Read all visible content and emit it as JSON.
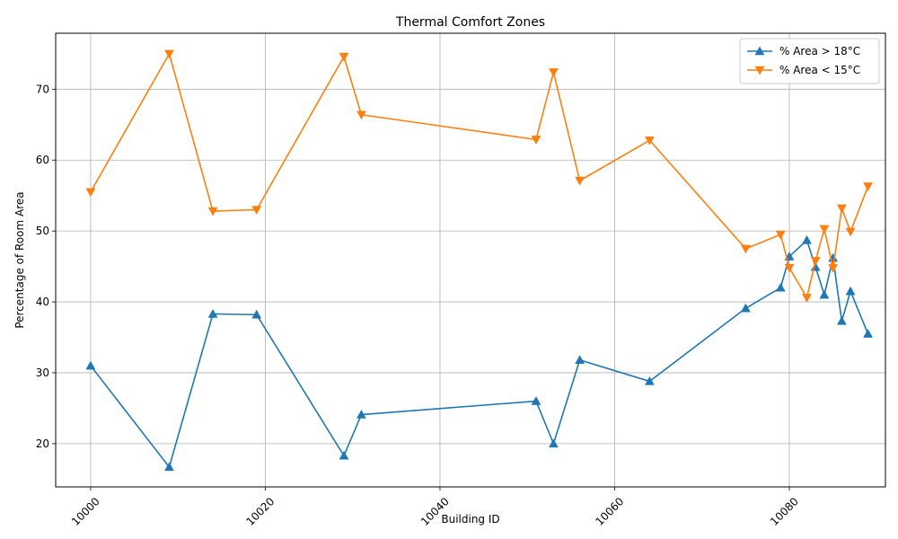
{
  "chart_data": {
    "type": "line",
    "title": "Thermal Comfort Zones",
    "xlabel": "Building ID",
    "ylabel": "Percentage of Room Area",
    "xlim": [
      9996,
      10091
    ],
    "ylim": [
      13.9,
      77.9
    ],
    "xticks": [
      10000,
      10020,
      10040,
      10060,
      10080
    ],
    "yticks": [
      20,
      30,
      40,
      50,
      60,
      70
    ],
    "grid": true,
    "legend_position": "top-right",
    "x": [
      10000,
      10009,
      10014,
      10019,
      10029,
      10031,
      10051,
      10053,
      10056,
      10064,
      10075,
      10079,
      10080,
      10082,
      10083,
      10084,
      10085,
      10086,
      10087,
      10089
    ],
    "series": [
      {
        "name": "% Area > 18°C",
        "color": "#1f77b4",
        "marker": "triangle-up",
        "values": [
          31.0,
          16.7,
          38.3,
          38.2,
          18.3,
          24.1,
          26.0,
          20.0,
          31.8,
          28.8,
          39.1,
          42.0,
          46.4,
          48.7,
          44.9,
          41.0,
          46.2,
          37.3,
          41.5,
          35.5
        ]
      },
      {
        "name": "% Area < 15°C",
        "color": "#ff7f0e",
        "marker": "triangle-down",
        "values": [
          55.5,
          75.0,
          52.8,
          53.0,
          74.6,
          66.4,
          62.9,
          72.4,
          57.1,
          62.8,
          47.5,
          49.5,
          44.8,
          40.6,
          45.8,
          50.3,
          44.8,
          53.2,
          49.9,
          56.3
        ]
      }
    ]
  }
}
